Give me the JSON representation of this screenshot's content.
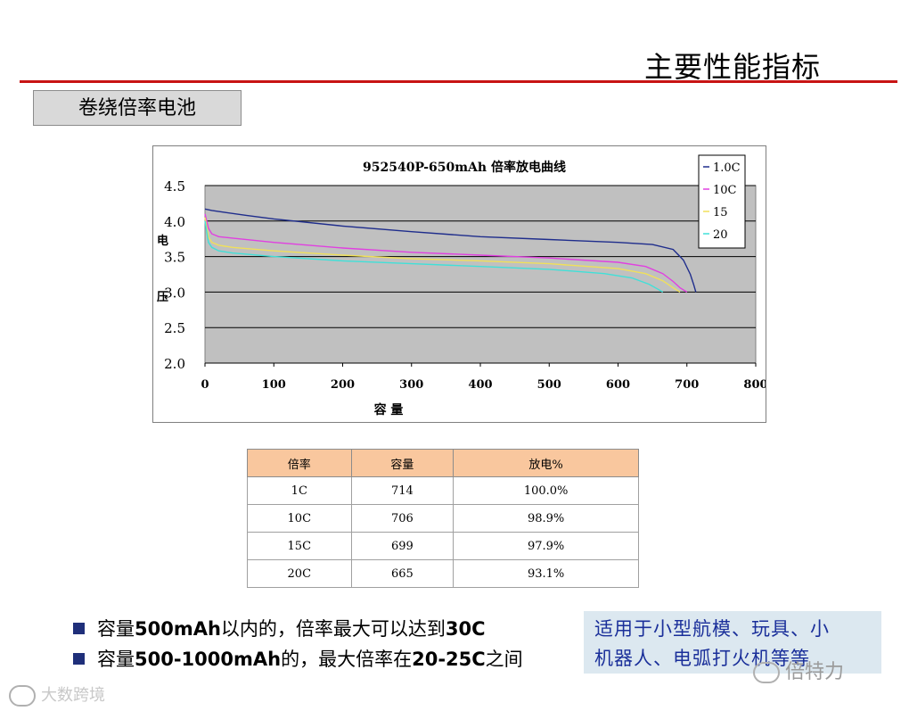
{
  "header": {
    "title": "主要性能指标"
  },
  "section": {
    "label": "卷绕倍率电池"
  },
  "chart_data": {
    "type": "line",
    "title": "952540P-650mAh  倍率放电曲线",
    "xlabel": "容   量",
    "ylabel": [
      "电",
      "压"
    ],
    "xlim": [
      0,
      800
    ],
    "ylim": [
      2.0,
      4.5
    ],
    "x_ticks": [
      "0",
      "100",
      "200",
      "300",
      "400",
      "500",
      "600",
      "700",
      "800"
    ],
    "y_ticks": [
      "2.0",
      "2.5",
      "3.0",
      "3.5",
      "4.0",
      "4.5"
    ],
    "grid": "horizontal",
    "legend_position": "top-right",
    "series": [
      {
        "name": "1.0C",
        "color": "#1f2d8c",
        "x": [
          0,
          10,
          30,
          60,
          100,
          200,
          300,
          400,
          500,
          600,
          650,
          680,
          695,
          705,
          710,
          713
        ],
        "y": [
          4.17,
          4.15,
          4.12,
          4.08,
          4.03,
          3.93,
          3.85,
          3.78,
          3.74,
          3.7,
          3.67,
          3.6,
          3.45,
          3.25,
          3.1,
          3.0
        ]
      },
      {
        "name": "10C",
        "color": "#e040e0",
        "x": [
          0,
          5,
          10,
          20,
          40,
          100,
          200,
          300,
          400,
          500,
          600,
          640,
          665,
          680,
          690,
          700
        ],
        "y": [
          4.1,
          3.9,
          3.82,
          3.78,
          3.76,
          3.7,
          3.62,
          3.56,
          3.52,
          3.48,
          3.42,
          3.36,
          3.26,
          3.15,
          3.06,
          3.0
        ]
      },
      {
        "name": "15",
        "color": "#f0e05a",
        "x": [
          0,
          5,
          10,
          20,
          40,
          100,
          200,
          300,
          400,
          500,
          600,
          640,
          665,
          680,
          690
        ],
        "y": [
          4.05,
          3.78,
          3.7,
          3.66,
          3.63,
          3.58,
          3.52,
          3.47,
          3.44,
          3.4,
          3.33,
          3.26,
          3.16,
          3.06,
          3.0
        ]
      },
      {
        "name": "20",
        "color": "#40e0d8",
        "x": [
          0,
          5,
          10,
          20,
          40,
          100,
          200,
          300,
          400,
          500,
          580,
          620,
          645,
          658,
          665
        ],
        "y": [
          4.0,
          3.7,
          3.63,
          3.58,
          3.55,
          3.5,
          3.44,
          3.4,
          3.36,
          3.32,
          3.26,
          3.2,
          3.11,
          3.04,
          3.0
        ]
      }
    ]
  },
  "table": {
    "headers": [
      "倍率",
      "容量",
      "放电%"
    ],
    "rows": [
      [
        "1C",
        "714",
        "100.0%"
      ],
      [
        "10C",
        "706",
        "98.9%"
      ],
      [
        "15C",
        "699",
        "97.9%"
      ],
      [
        "20C",
        "665",
        "93.1%"
      ]
    ]
  },
  "bullets": [
    {
      "prefix": "容量",
      "bold": "500mAh",
      "mid": "以内的，倍率最大可以达到",
      "bold2": "30C",
      "suffix": ""
    },
    {
      "prefix": "容量",
      "bold": "500-1000mAh",
      "mid": "的，最大倍率在",
      "bold2": "20-25C",
      "suffix": "之间"
    }
  ],
  "callout": {
    "line1": "适用于小型航模、玩具、小",
    "line2": "机器人、电弧打火机等等"
  },
  "watermarks": {
    "left": "大数跨境",
    "right": "倍特力"
  }
}
